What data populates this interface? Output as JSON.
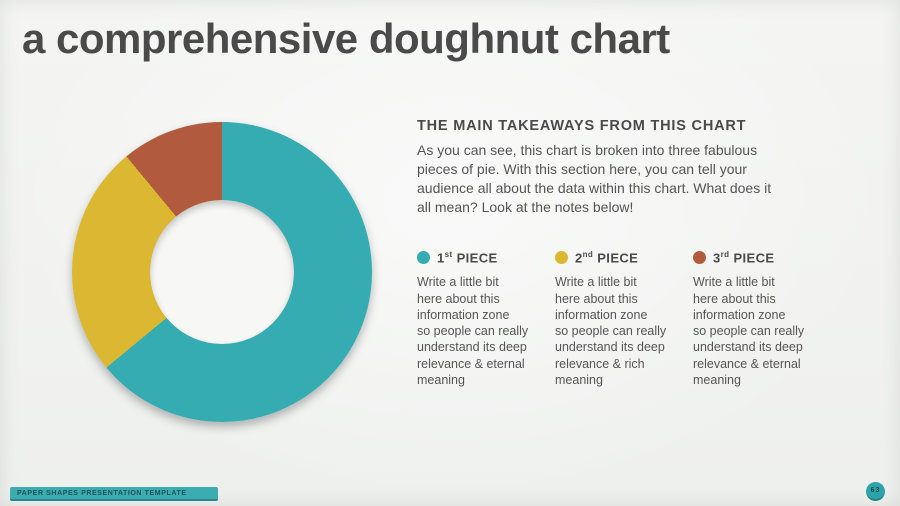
{
  "slide": {
    "title": "a comprehensive doughnut chart",
    "footer_text": "PAPER SHAPES PRESENTATION TEMPLATE",
    "page_number": "63",
    "background_color": "#f2f3f1",
    "accent_color": "#3aacb2"
  },
  "takeaways": {
    "heading": "THE MAIN TAKEAWAYS FROM THIS CHART",
    "body": "As you can see, this chart is broken into three fabulous\npieces of pie. With this section here, you can tell your\naudience all about the data within this chart. What does it\nall mean? Look at the notes below!"
  },
  "legend": [
    {
      "ordinal": "1",
      "suffix": "st",
      "word": "PIECE",
      "color": "#35acb1",
      "body": "Write a little bit\nhere about this\ninformation zone\nso people can really\nunderstand its deep\nrelevance & eternal\nmeaning"
    },
    {
      "ordinal": "2",
      "suffix": "nd",
      "word": "PIECE",
      "color": "#dcb732",
      "body": "Write a little bit\nhere about this\ninformation zone\nso people can really\nunderstand its deep\nrelevance & rich\nmeaning"
    },
    {
      "ordinal": "3",
      "suffix": "rd",
      "word": "PIECE",
      "color": "#b25a3e",
      "body": "Write a little bit\nhere about this\ninformation zone\nso people can really\nunderstand its deep\nrelevance & eternal\nmeaning"
    }
  ],
  "chart_data": {
    "type": "pie",
    "subtype": "doughnut",
    "title": "a comprehensive doughnut chart",
    "labels": [
      "1st PIECE",
      "2nd PIECE",
      "3rd PIECE"
    ],
    "values": [
      64,
      25,
      11
    ],
    "unit": "percent",
    "colors": [
      "#35acb1",
      "#dcb732",
      "#b25a3e"
    ],
    "start_angle_deg": 0,
    "direction": "clockwise",
    "inner_radius_ratio": 0.48,
    "legend_position": "right"
  }
}
